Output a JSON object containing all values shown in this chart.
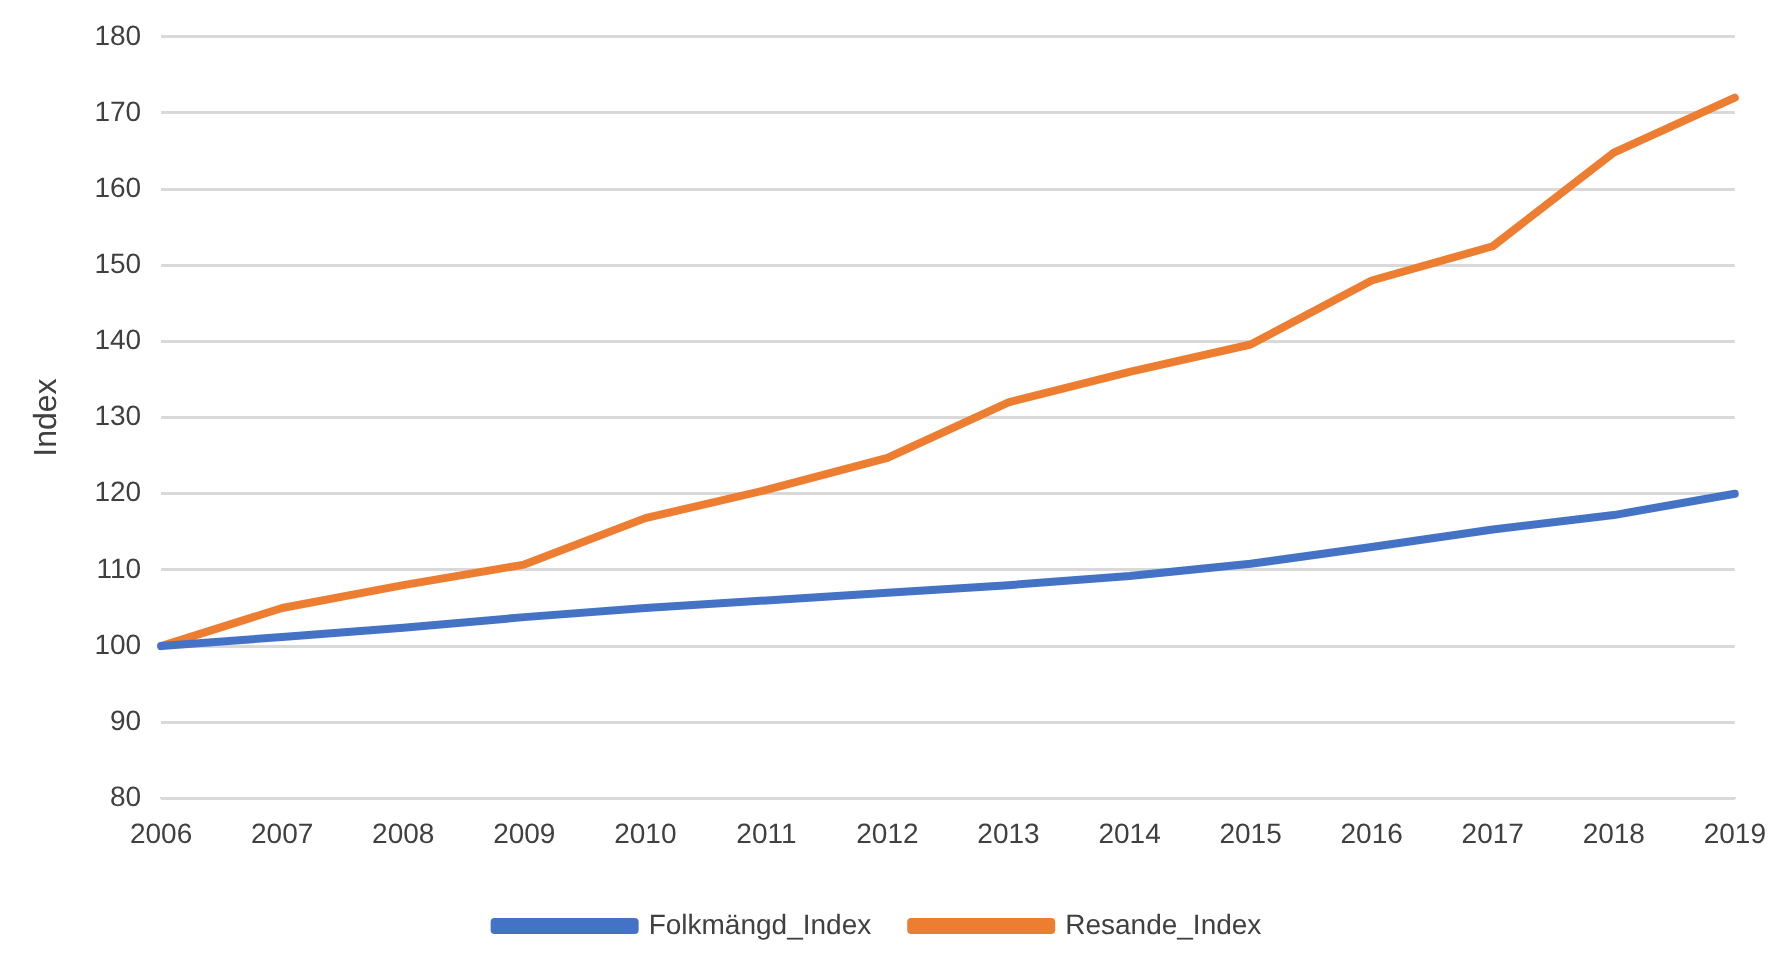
{
  "chart_data": {
    "type": "line",
    "ylabel": "Index",
    "categories": [
      "2006",
      "2007",
      "2008",
      "2009",
      "2010",
      "2011",
      "2012",
      "2013",
      "2014",
      "2015",
      "2016",
      "2017",
      "2018",
      "2019"
    ],
    "series": [
      {
        "name": "Folkmängd_Index",
        "color": "#4472c4",
        "values": [
          100,
          101.2,
          102.4,
          103.8,
          105,
          106,
          107,
          108,
          109.2,
          110.8,
          113,
          115.3,
          117.2,
          120
        ]
      },
      {
        "name": "Resande_Index",
        "color": "#ed7d31",
        "values": [
          100,
          105,
          108,
          110.7,
          116.8,
          120.5,
          124.7,
          132,
          136,
          139.6,
          148,
          152.5,
          164.8,
          172
        ]
      }
    ],
    "ylim": [
      80,
      180
    ],
    "yticks": [
      80,
      90,
      100,
      110,
      120,
      130,
      140,
      150,
      160,
      170,
      180
    ],
    "grid": "y",
    "legend": "bottom",
    "marker": "none",
    "line_style": "solid"
  }
}
